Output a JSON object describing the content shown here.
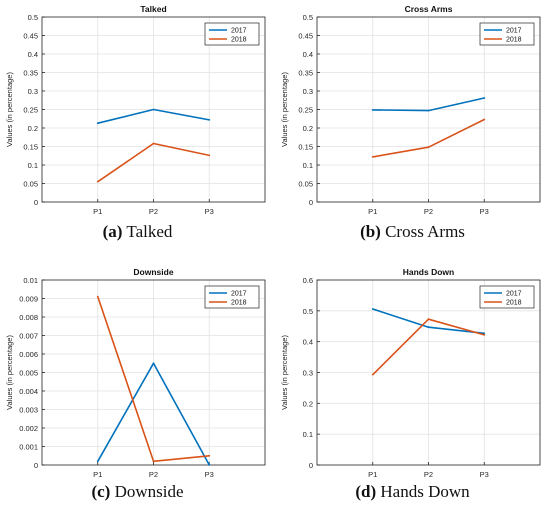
{
  "chart_data": [
    {
      "type": "line",
      "title": "Talked",
      "ylabel": "Values (in percentage)",
      "categories": [
        "P1",
        "P2",
        "P3"
      ],
      "xlim": [
        0,
        4
      ],
      "ylim": [
        0,
        0.5
      ],
      "yticks": [
        0,
        0.05,
        0.1,
        0.15,
        0.2,
        0.25,
        0.3,
        0.35,
        0.4,
        0.45,
        0.5
      ],
      "ytick_labels": [
        "0",
        "0.05",
        "0.1",
        "0.15",
        "0.2",
        "0.25",
        "0.3",
        "0.35",
        "0.4",
        "0.45",
        "0.5"
      ],
      "grid": true,
      "legend_position": "top-right",
      "series": [
        {
          "name": "2017",
          "color": "#0072BD",
          "values": [
            0.213,
            0.25,
            0.222
          ]
        },
        {
          "name": "2018",
          "color": "#D95319",
          "values": [
            0.055,
            0.158,
            0.126
          ]
        }
      ],
      "caption_letter": "(a)",
      "caption_text": "Talked"
    },
    {
      "type": "line",
      "title": "Cross Arms",
      "ylabel": "Values (in percentage)",
      "categories": [
        "P1",
        "P2",
        "P3"
      ],
      "xlim": [
        0,
        4
      ],
      "ylim": [
        0,
        0.5
      ],
      "yticks": [
        0,
        0.05,
        0.1,
        0.15,
        0.2,
        0.25,
        0.3,
        0.35,
        0.4,
        0.45,
        0.5
      ],
      "ytick_labels": [
        "0",
        "0.05",
        "0.1",
        "0.15",
        "0.2",
        "0.25",
        "0.3",
        "0.35",
        "0.4",
        "0.45",
        "0.5"
      ],
      "grid": true,
      "legend_position": "top-right",
      "series": [
        {
          "name": "2017",
          "color": "#0072BD",
          "values": [
            0.249,
            0.247,
            0.281
          ]
        },
        {
          "name": "2018",
          "color": "#D95319",
          "values": [
            0.122,
            0.148,
            0.223
          ]
        }
      ],
      "caption_letter": "(b)",
      "caption_text": "Cross Arms"
    },
    {
      "type": "line",
      "title": "Downside",
      "ylabel": "Values (in percentage)",
      "categories": [
        "P1",
        "P2",
        "P3"
      ],
      "xlim": [
        0,
        4
      ],
      "ylim": [
        0,
        0.01
      ],
      "yticks": [
        0,
        0.001,
        0.002,
        0.003,
        0.004,
        0.005,
        0.006,
        0.007,
        0.008,
        0.009,
        0.01
      ],
      "ytick_labels": [
        "0",
        "0.001",
        "0.002",
        "0.003",
        "0.004",
        "0.005",
        "0.006",
        "0.007",
        "0.008",
        "0.009",
        "0.01"
      ],
      "grid": true,
      "legend_position": "top-right",
      "series": [
        {
          "name": "2017",
          "color": "#0072BD",
          "values": [
            0.0002,
            0.0055,
            0
          ]
        },
        {
          "name": "2018",
          "color": "#D95319",
          "values": [
            0.0091,
            0.0002,
            0.0005
          ]
        }
      ],
      "caption_letter": "(c)",
      "caption_text": "Downside"
    },
    {
      "type": "line",
      "title": "Hands Down",
      "ylabel": "Values (in percentage)",
      "categories": [
        "P1",
        "P2",
        "P3"
      ],
      "xlim": [
        0,
        4
      ],
      "ylim": [
        0,
        0.6
      ],
      "yticks": [
        0,
        0.1,
        0.2,
        0.3,
        0.4,
        0.5,
        0.6
      ],
      "ytick_labels": [
        "0",
        "0.1",
        "0.2",
        "0.3",
        "0.4",
        "0.5",
        "0.6"
      ],
      "grid": true,
      "legend_position": "top-right",
      "series": [
        {
          "name": "2017",
          "color": "#0072BD",
          "values": [
            0.506,
            0.447,
            0.427
          ]
        },
        {
          "name": "2018",
          "color": "#D95319",
          "values": [
            0.293,
            0.473,
            0.422
          ]
        }
      ],
      "caption_letter": "(d)",
      "caption_text": "Hands Down"
    }
  ]
}
